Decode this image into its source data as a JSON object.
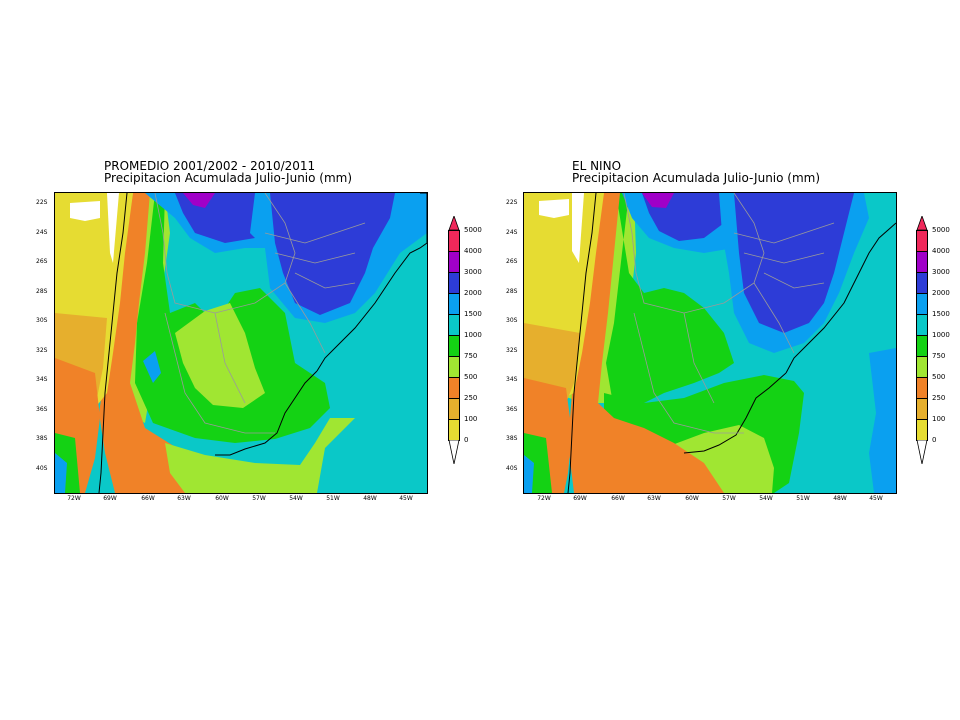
{
  "panels": [
    {
      "title_line1": "PROMEDIO 2001/2002 - 2010/2011",
      "title_line2": "Precipitacion Acumulada Julio-Junio (mm)"
    },
    {
      "title_line1": "EL NINO",
      "title_line2": "Precipitacion Acumulada Julio-Junio (mm)"
    }
  ],
  "lat_ticks": [
    "22S",
    "24S",
    "26S",
    "28S",
    "30S",
    "32S",
    "34S",
    "36S",
    "38S",
    "40S"
  ],
  "lon_ticks": [
    "72W",
    "69W",
    "66W",
    "63W",
    "60W",
    "57W",
    "54W",
    "51W",
    "48W",
    "45W"
  ],
  "colorbar": {
    "labels": [
      "5000",
      "4000",
      "3000",
      "2000",
      "1500",
      "1000",
      "750",
      "500",
      "250",
      "100",
      "0"
    ],
    "colors": [
      "#f0285a",
      "#a000c8",
      "#2d3cd7",
      "#0aa0f0",
      "#0ac8c8",
      "#14d214",
      "#a0e632",
      "#f08228",
      "#e6af2d",
      "#e6dc32",
      "#ffffff"
    ]
  },
  "map": {
    "lat_range": [
      "22S",
      "41S"
    ],
    "lon_range": [
      "74W",
      "45W"
    ],
    "colors": {
      "white": "#ffffff",
      "yellow": "#e6dc32",
      "amber": "#e6af2d",
      "orange": "#f08228",
      "lightgreen": "#a0e632",
      "green": "#14d214",
      "cyan": "#0ac8c8",
      "lightblue": "#0aa0f0",
      "blue": "#2d3cd7",
      "purple": "#a000c8"
    }
  }
}
